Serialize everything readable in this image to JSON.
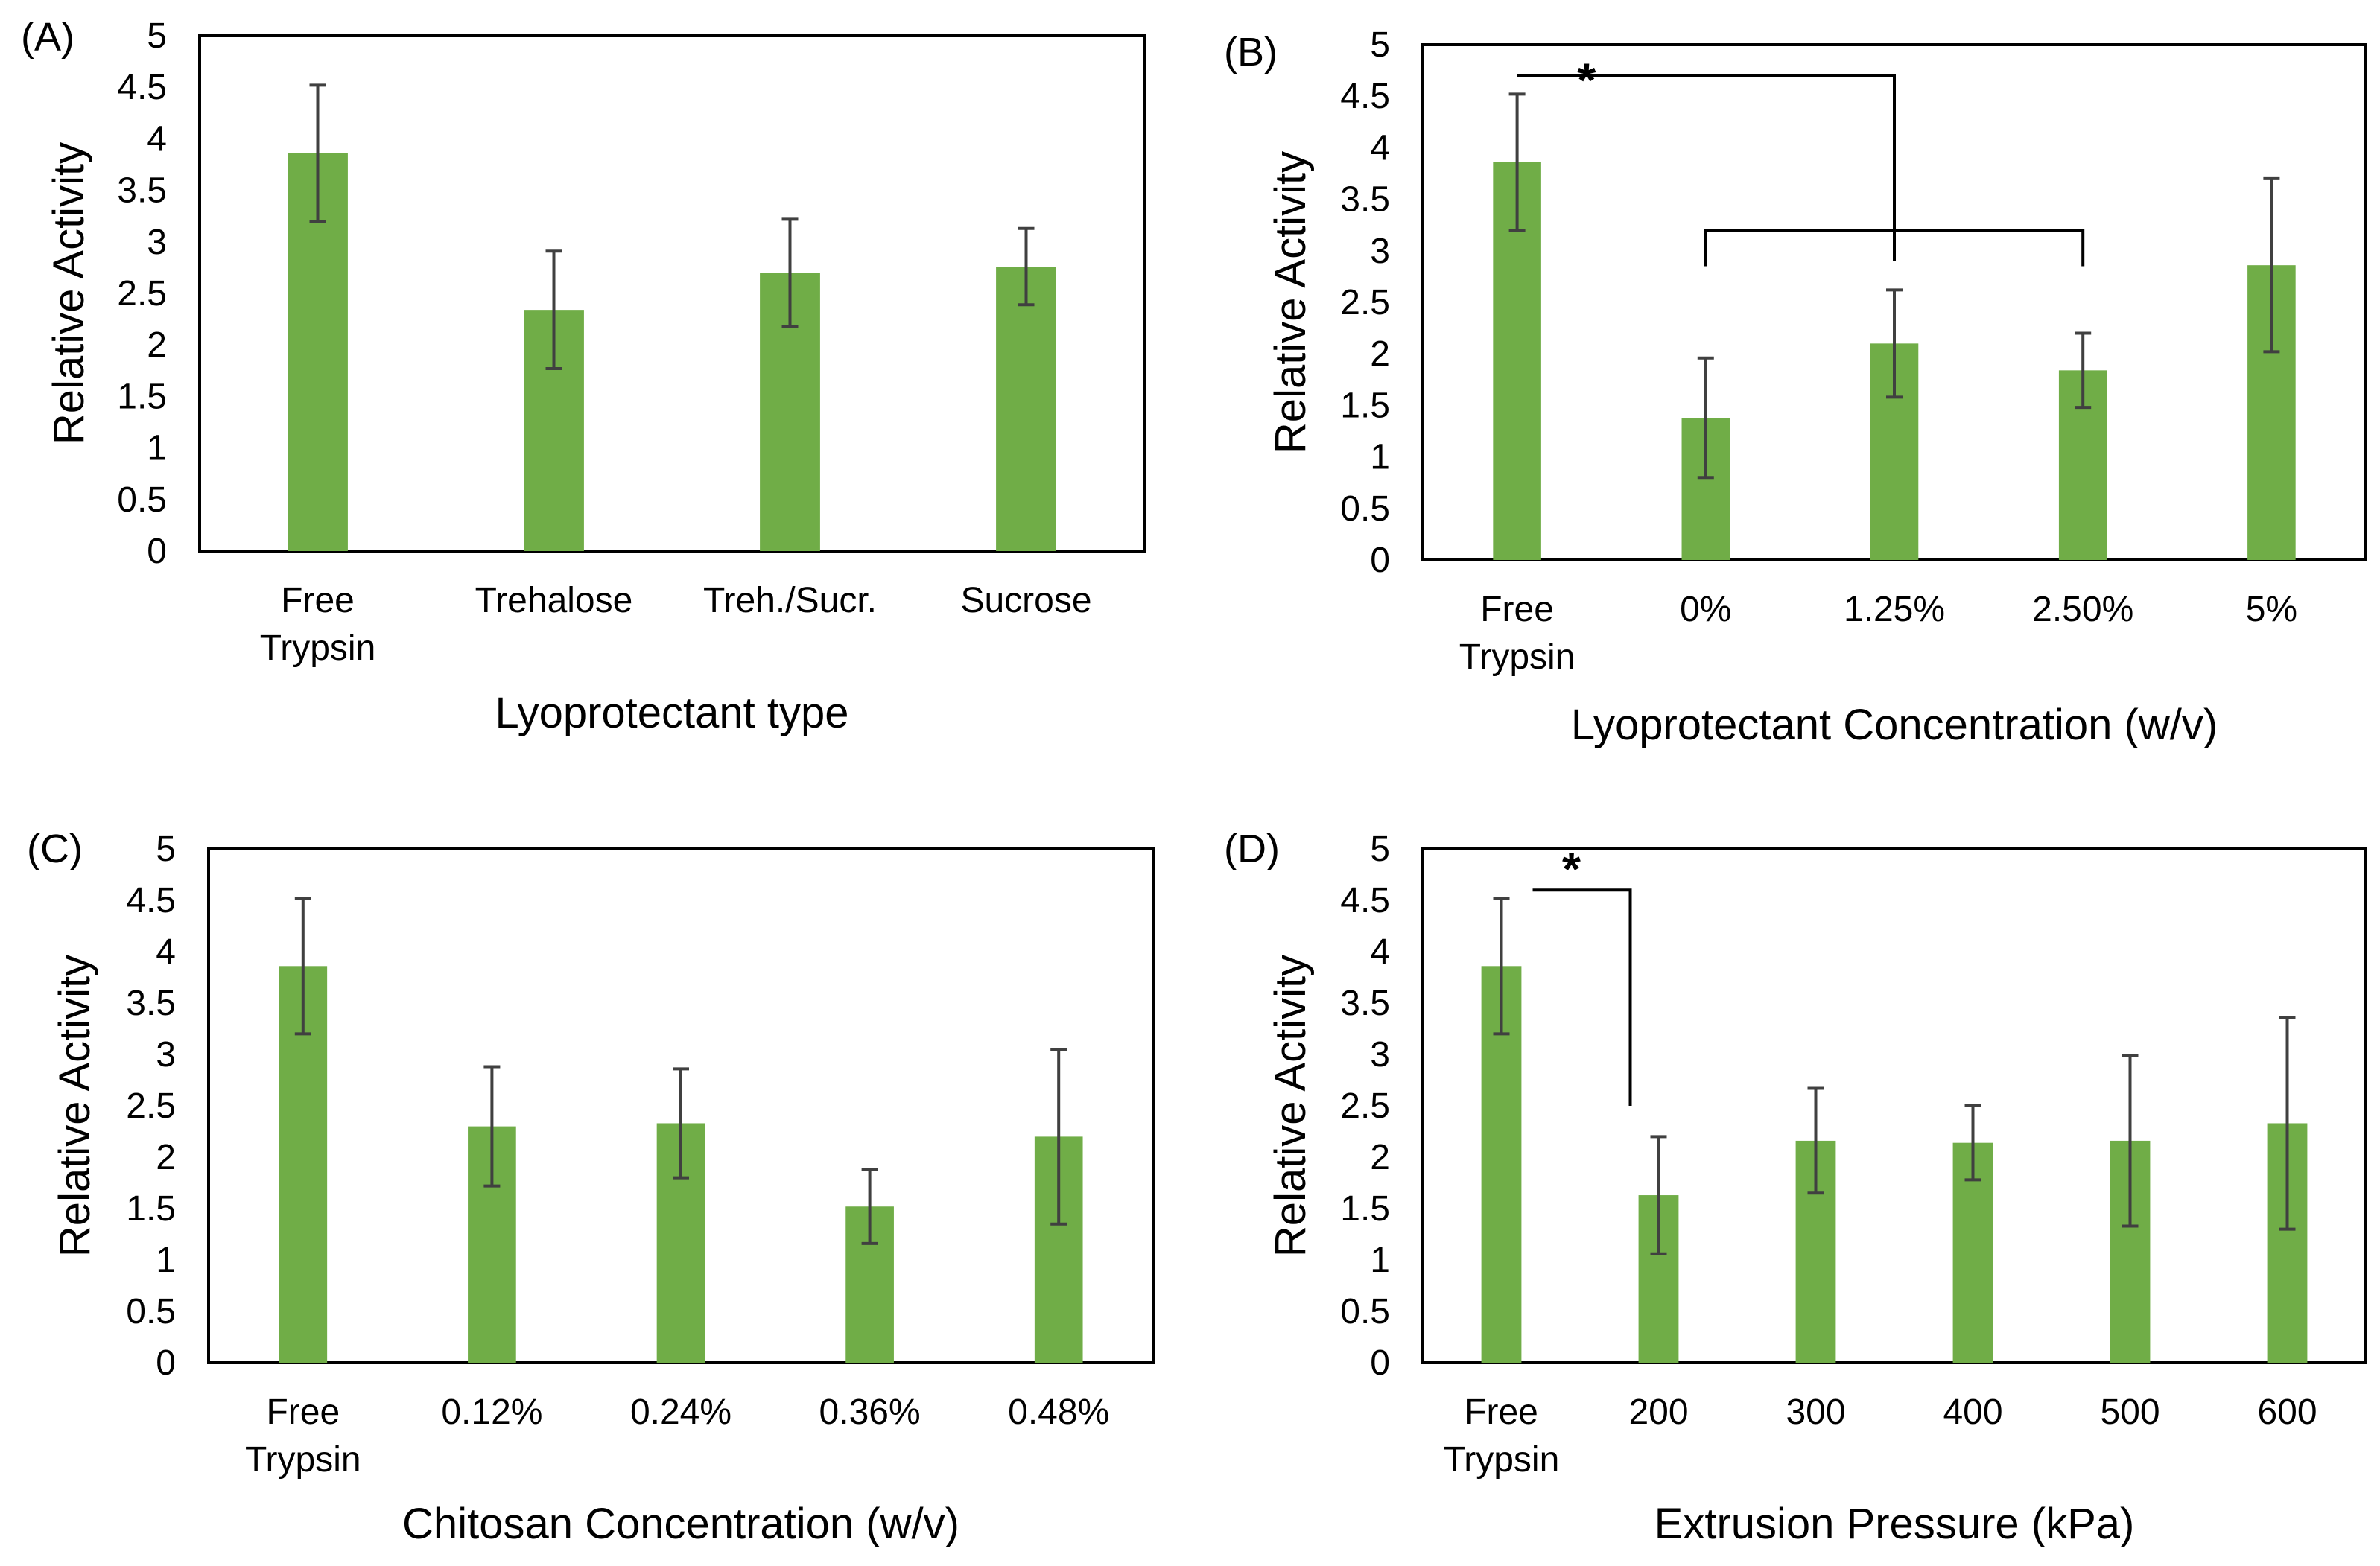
{
  "chart_data": [
    {
      "panel": "(A)",
      "type": "bar",
      "categories": [
        [
          "Free",
          "Trypsin"
        ],
        [
          "Trehalose"
        ],
        [
          "Treh./Sucr."
        ],
        [
          "Sucrose"
        ]
      ],
      "values": [
        3.86,
        2.34,
        2.7,
        2.76
      ],
      "errors": [
        0.66,
        0.57,
        0.52,
        0.37
      ],
      "xlabel": "Lyoprotectant type",
      "ylabel": "Relative Activity",
      "ylim": [
        0,
        5
      ],
      "yticks": [
        "0",
        "0.5",
        "1",
        "1.5",
        "2",
        "2.5",
        "3",
        "3.5",
        "4",
        "4.5",
        "5"
      ],
      "bar_color": "#70ad47",
      "error_color": "#404040",
      "grid": false,
      "significance": []
    },
    {
      "panel": "(B)",
      "type": "bar",
      "categories": [
        [
          "Free",
          "Trypsin"
        ],
        [
          "0%"
        ],
        [
          "1.25%"
        ],
        [
          "2.50%"
        ],
        [
          "5%"
        ]
      ],
      "values": [
        3.86,
        1.38,
        2.1,
        1.84,
        2.86
      ],
      "errors": [
        0.66,
        0.58,
        0.52,
        0.36,
        0.84
      ],
      "xlabel": "Lyoprotectant  Concentration (w/v)",
      "ylabel": "Relative Activity",
      "ylim": [
        0,
        5
      ],
      "yticks": [
        "0",
        "0.5",
        "1",
        "1.5",
        "2",
        "2.5",
        "3",
        "3.5",
        "4",
        "4.5",
        "5"
      ],
      "bar_color": "#70ad47",
      "error_color": "#404040",
      "grid": false,
      "significance": [
        {
          "type": "nested",
          "from": 0,
          "to": 2,
          "top_y": 4.7,
          "drop_to": 2.9,
          "group": [
            1,
            3
          ],
          "group_y": 3.2,
          "group_drop": 2.85,
          "label": "*"
        }
      ]
    },
    {
      "panel": "(C)",
      "type": "bar",
      "categories": [
        [
          "Free",
          "Trypsin"
        ],
        [
          "0.12%"
        ],
        [
          "0.24%"
        ],
        [
          "0.36%"
        ],
        [
          "0.48%"
        ]
      ],
      "values": [
        3.86,
        2.3,
        2.33,
        1.52,
        2.2
      ],
      "errors": [
        0.66,
        0.58,
        0.53,
        0.36,
        0.85
      ],
      "xlabel": "Chitosan Concentration (w/v)",
      "ylabel": "Relative Activity",
      "ylim": [
        0,
        5
      ],
      "yticks": [
        "0",
        "0.5",
        "1",
        "1.5",
        "2",
        "2.5",
        "3",
        "3.5",
        "4",
        "4.5",
        "5"
      ],
      "bar_color": "#70ad47",
      "error_color": "#404040",
      "grid": false,
      "significance": []
    },
    {
      "panel": "(D)",
      "type": "bar",
      "categories": [
        [
          "Free",
          "Trypsin"
        ],
        [
          "200"
        ],
        [
          "300"
        ],
        [
          "400"
        ],
        [
          "500"
        ],
        [
          "600"
        ]
      ],
      "values": [
        3.86,
        1.63,
        2.16,
        2.14,
        2.16,
        2.33
      ],
      "errors": [
        0.66,
        0.57,
        0.51,
        0.36,
        0.83,
        1.03
      ],
      "xlabel": "Extrusion Pressure (kPa)",
      "ylabel": "Relative Activity",
      "ylim": [
        0,
        5
      ],
      "yticks": [
        "0",
        "0.5",
        "1",
        "1.5",
        "2",
        "2.5",
        "3",
        "3.5",
        "4",
        "4.5",
        "5"
      ],
      "bar_color": "#70ad47",
      "error_color": "#404040",
      "grid": false,
      "significance": [
        {
          "type": "step",
          "from": 0,
          "to": 1,
          "top_y": 4.6,
          "drop_to": 2.5,
          "label": "*"
        }
      ]
    }
  ]
}
